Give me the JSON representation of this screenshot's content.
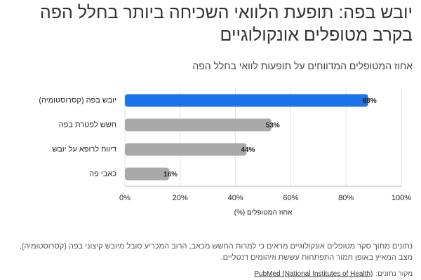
{
  "chart_data": {
    "type": "barh",
    "title": "יובש בפה: תופעת הלוואי השכיחה ביותר בחלל הפה בקרב מטופלים אונקולוגיים",
    "subtitle": "אחוז המטופלים המדווחים על תופעות לוואי בחלל הפה",
    "categories": [
      "יובש בפה (קסרוסטומיה)",
      "חשש לפטרת בפה",
      "דיווח לרופא על יובש",
      "כאבי פה"
    ],
    "values": [
      88,
      53,
      44,
      16
    ],
    "value_labels": [
      "88%",
      "53%",
      "44%",
      "16%"
    ],
    "colors": [
      "#1a73e8",
      "#a9a9a9",
      "#a9a9a9",
      "#a9a9a9"
    ],
    "xlim": [
      0,
      100
    ],
    "xticks": [
      {
        "value": 0,
        "label": "0%"
      },
      {
        "value": 20,
        "label": "20%"
      },
      {
        "value": 40,
        "label": "40%"
      },
      {
        "value": 60,
        "label": "60%"
      },
      {
        "value": 80,
        "label": "80%"
      },
      {
        "value": 100,
        "label": "100%"
      }
    ],
    "xlabel": "אחוז המטופלים (%)",
    "grid": true,
    "note": "נתונים מתוך סקר מטופלים אונקולוגיים מראים כי למרות החשש מכאב, הרוב המכריע סובל מיובש קיצוני בפה (קסרוסטומיה), מצב המאיץ באופן חמור התפתחות עששת וזיהומים דנטליים.",
    "source_label": "מקור נתונים:",
    "source": "PubMed (National Institutes of Health)"
  }
}
